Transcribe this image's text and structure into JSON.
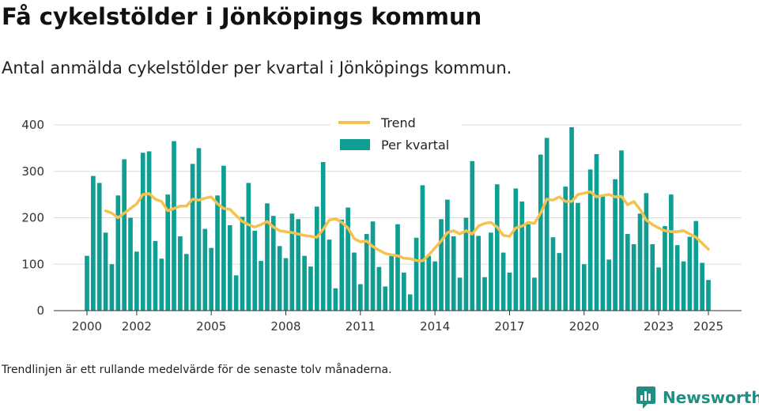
{
  "title": "Få cykelstölder i Jönköpings kommun",
  "subtitle": "Antal anmälda cykelstölder per kvartal i Jönköpings kommun.",
  "footnote": "Trendlinjen är ett rullande medelvärde för de senaste tolv månaderna.",
  "brand": {
    "name": "Newsworthy",
    "icon": "newsworthy-logo-icon"
  },
  "colors": {
    "bar": "#0e9e93",
    "trend": "#f5c24f",
    "grid": "#dddddd",
    "axis": "#333333"
  },
  "chart_data": {
    "type": "bar",
    "title": "",
    "xlabel": "",
    "ylabel": "",
    "ylim": [
      0,
      400
    ],
    "yticks": [
      0,
      100,
      200,
      300,
      400
    ],
    "xticks": [
      "2000",
      "2002",
      "2005",
      "2008",
      "2011",
      "2014",
      "2017",
      "2020",
      "2023",
      "2025"
    ],
    "xtick_positions": [
      2000.0,
      2002.0,
      2005.0,
      2008.0,
      2011.0,
      2014.0,
      2017.0,
      2020.0,
      2023.0,
      2025.0
    ],
    "grid": true,
    "legend_position": "top-center",
    "legend": [
      "Trend",
      "Per kvartal"
    ],
    "series": [
      {
        "name": "Per kvartal",
        "type": "bar",
        "x_start": 2000.0,
        "x_step": 0.25,
        "values": [
          118,
          290,
          275,
          168,
          100,
          248,
          326,
          200,
          127,
          340,
          343,
          150,
          112,
          250,
          365,
          160,
          122,
          316,
          350,
          176,
          135,
          248,
          312,
          184,
          76,
          202,
          275,
          172,
          107,
          231,
          204,
          139,
          113,
          209,
          197,
          118,
          95,
          224,
          320,
          153,
          48,
          196,
          222,
          125,
          57,
          165,
          192,
          94,
          52,
          120,
          186,
          82,
          35,
          157,
          270,
          118,
          106,
          197,
          239,
          160,
          71,
          200,
          322,
          161,
          72,
          168,
          272,
          125,
          82,
          263,
          235,
          186,
          71,
          336,
          372,
          158,
          124,
          267,
          395,
          232,
          100,
          304,
          337,
          248,
          110,
          283,
          345,
          165,
          143,
          209,
          253,
          143,
          93,
          182,
          250,
          141,
          106,
          159,
          193,
          103,
          66
        ]
      },
      {
        "name": "Trend",
        "type": "line",
        "points": [
          [
            2000.75,
            215
          ],
          [
            2001.0,
            210
          ],
          [
            2001.25,
            200
          ],
          [
            2001.5,
            210
          ],
          [
            2001.75,
            220
          ],
          [
            2002.0,
            230
          ],
          [
            2002.25,
            250
          ],
          [
            2002.5,
            252
          ],
          [
            2002.75,
            240
          ],
          [
            2003.0,
            235
          ],
          [
            2003.25,
            215
          ],
          [
            2003.5,
            220
          ],
          [
            2003.75,
            225
          ],
          [
            2004.0,
            225
          ],
          [
            2004.25,
            240
          ],
          [
            2004.5,
            238
          ],
          [
            2004.75,
            242
          ],
          [
            2005.0,
            245
          ],
          [
            2005.25,
            230
          ],
          [
            2005.5,
            220
          ],
          [
            2005.75,
            218
          ],
          [
            2006.0,
            205
          ],
          [
            2006.25,
            192
          ],
          [
            2006.5,
            185
          ],
          [
            2006.75,
            180
          ],
          [
            2007.0,
            185
          ],
          [
            2007.25,
            192
          ],
          [
            2007.5,
            180
          ],
          [
            2007.75,
            172
          ],
          [
            2008.0,
            170
          ],
          [
            2008.25,
            168
          ],
          [
            2008.5,
            165
          ],
          [
            2008.75,
            162
          ],
          [
            2009.0,
            160
          ],
          [
            2009.25,
            158
          ],
          [
            2009.5,
            175
          ],
          [
            2009.75,
            195
          ],
          [
            2010.0,
            198
          ],
          [
            2010.25,
            190
          ],
          [
            2010.5,
            178
          ],
          [
            2010.75,
            155
          ],
          [
            2011.0,
            148
          ],
          [
            2011.25,
            150
          ],
          [
            2011.5,
            138
          ],
          [
            2011.75,
            130
          ],
          [
            2012.0,
            123
          ],
          [
            2012.25,
            120
          ],
          [
            2012.5,
            118
          ],
          [
            2012.75,
            113
          ],
          [
            2013.0,
            112
          ],
          [
            2013.25,
            108
          ],
          [
            2013.5,
            107
          ],
          [
            2013.75,
            120
          ],
          [
            2014.0,
            135
          ],
          [
            2014.25,
            150
          ],
          [
            2014.5,
            168
          ],
          [
            2014.75,
            172
          ],
          [
            2015.0,
            165
          ],
          [
            2015.25,
            172
          ],
          [
            2015.5,
            165
          ],
          [
            2015.75,
            182
          ],
          [
            2016.0,
            188
          ],
          [
            2016.25,
            190
          ],
          [
            2016.5,
            180
          ],
          [
            2016.75,
            162
          ],
          [
            2017.0,
            160
          ],
          [
            2017.25,
            178
          ],
          [
            2017.5,
            182
          ],
          [
            2017.75,
            190
          ],
          [
            2018.0,
            188
          ],
          [
            2018.25,
            210
          ],
          [
            2018.5,
            240
          ],
          [
            2018.75,
            238
          ],
          [
            2019.0,
            245
          ],
          [
            2019.25,
            235
          ],
          [
            2019.5,
            235
          ],
          [
            2019.75,
            250
          ],
          [
            2020.0,
            253
          ],
          [
            2020.25,
            256
          ],
          [
            2020.5,
            245
          ],
          [
            2020.75,
            248
          ],
          [
            2021.0,
            250
          ],
          [
            2021.25,
            245
          ],
          [
            2021.5,
            246
          ],
          [
            2021.75,
            228
          ],
          [
            2022.0,
            235
          ],
          [
            2022.25,
            218
          ],
          [
            2022.5,
            195
          ],
          [
            2022.75,
            185
          ],
          [
            2023.0,
            178
          ],
          [
            2023.25,
            172
          ],
          [
            2023.5,
            170
          ],
          [
            2023.75,
            170
          ],
          [
            2024.0,
            172
          ],
          [
            2024.25,
            165
          ],
          [
            2024.5,
            158
          ],
          [
            2024.75,
            145
          ],
          [
            2025.0,
            132
          ]
        ]
      }
    ]
  }
}
